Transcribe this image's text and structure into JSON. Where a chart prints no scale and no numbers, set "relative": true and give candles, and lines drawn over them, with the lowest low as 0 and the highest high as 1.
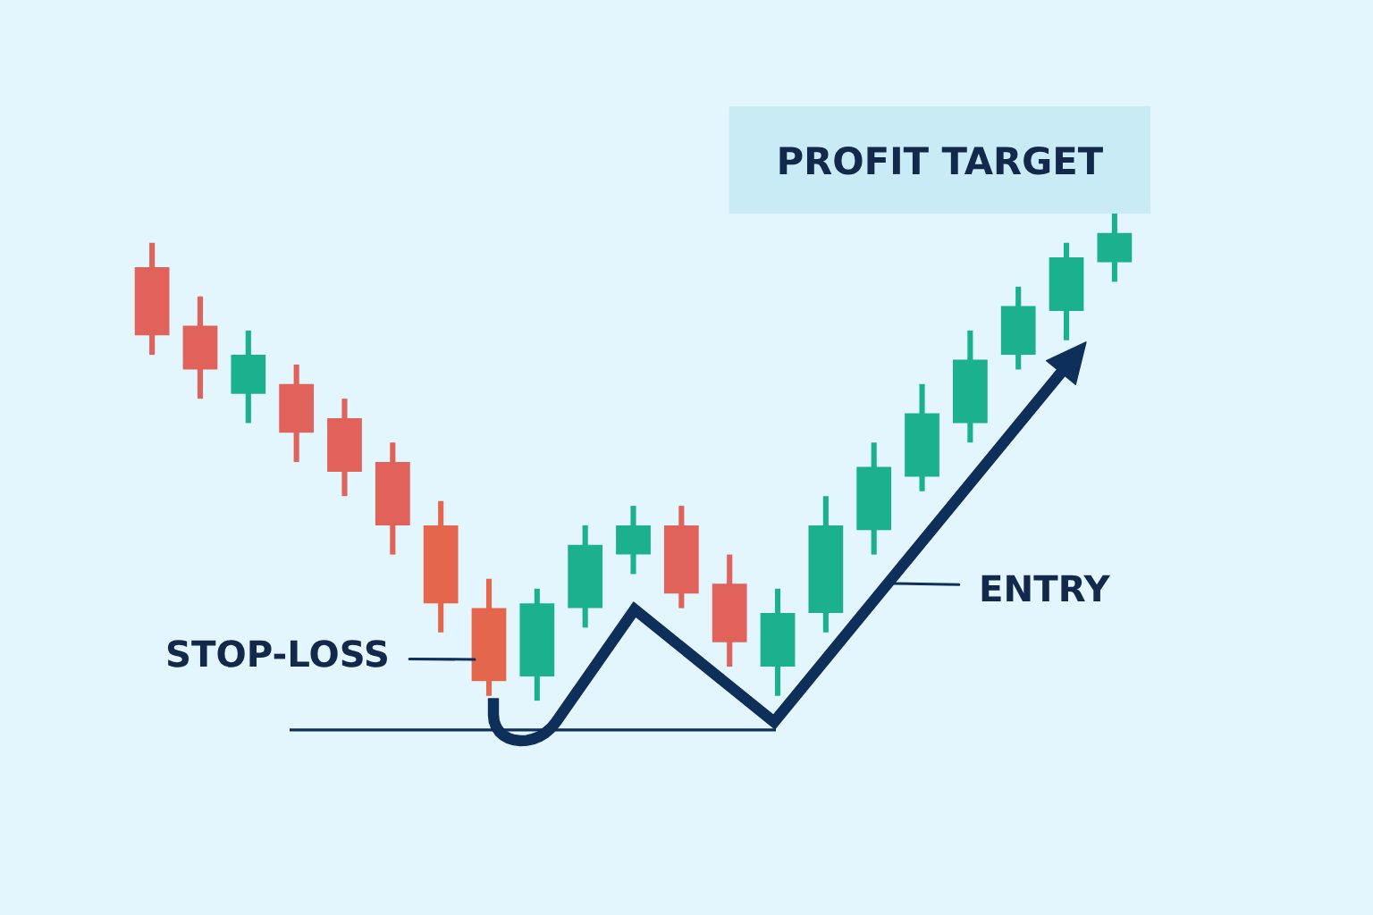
{
  "chart_data": {
    "type": "candlestick",
    "relative": true,
    "categories": [
      null,
      null,
      null,
      null,
      null,
      null,
      null,
      null,
      null,
      null,
      null,
      null,
      null,
      null,
      null,
      null,
      null,
      null,
      null,
      null,
      null
    ],
    "ohlc": [
      [
        0.89,
        0.94,
        0.71,
        0.75
      ],
      [
        0.77,
        0.83,
        0.62,
        0.68
      ],
      [
        0.63,
        0.76,
        0.57,
        0.71
      ],
      [
        0.65,
        0.69,
        0.49,
        0.55
      ],
      [
        0.58,
        0.62,
        0.42,
        0.47
      ],
      [
        0.49,
        0.53,
        0.3,
        0.36
      ],
      [
        0.36,
        0.41,
        0.14,
        0.2
      ],
      [
        0.19,
        0.25,
        0.01,
        0.04
      ],
      [
        0.05,
        0.23,
        0.0,
        0.2
      ],
      [
        0.19,
        0.36,
        0.15,
        0.32
      ],
      [
        0.3,
        0.4,
        0.26,
        0.36
      ],
      [
        0.36,
        0.4,
        0.19,
        0.22
      ],
      [
        0.24,
        0.3,
        0.07,
        0.12
      ],
      [
        0.07,
        0.23,
        0.01,
        0.18
      ],
      [
        0.18,
        0.42,
        0.14,
        0.36
      ],
      [
        0.35,
        0.53,
        0.3,
        0.48
      ],
      [
        0.46,
        0.65,
        0.43,
        0.59
      ],
      [
        0.57,
        0.76,
        0.53,
        0.7
      ],
      [
        0.71,
        0.85,
        0.68,
        0.81
      ],
      [
        0.8,
        0.94,
        0.74,
        0.91
      ],
      [
        0.9,
        1.0,
        0.86,
        0.96
      ]
    ],
    "colors": [
      "#e0625a",
      "#e0625a",
      "#1bb18f",
      "#e0625a",
      "#e0625a",
      "#e0625a",
      "#e4664c",
      "#e4664c",
      "#1bb18f",
      "#1bb18f",
      "#1bb18f",
      "#e0625a",
      "#e0625a",
      "#1bb18f",
      "#1bb18f",
      "#1bb18f",
      "#1bb18f",
      "#1bb18f",
      "#1bb18f",
      "#1bb18f",
      "#1bb18f"
    ],
    "ref_lines": [
      {
        "axis": "y",
        "value": -0.06,
        "color": "#0d2f5a"
      }
    ],
    "bands": [
      {
        "axis": "y",
        "from": 1.0,
        "to": 1.22,
        "label": "PROFIT TARGET",
        "color": "#c9ebf6"
      }
    ],
    "annotations": [
      "STOP-LOSS",
      "ENTRY"
    ]
  }
}
